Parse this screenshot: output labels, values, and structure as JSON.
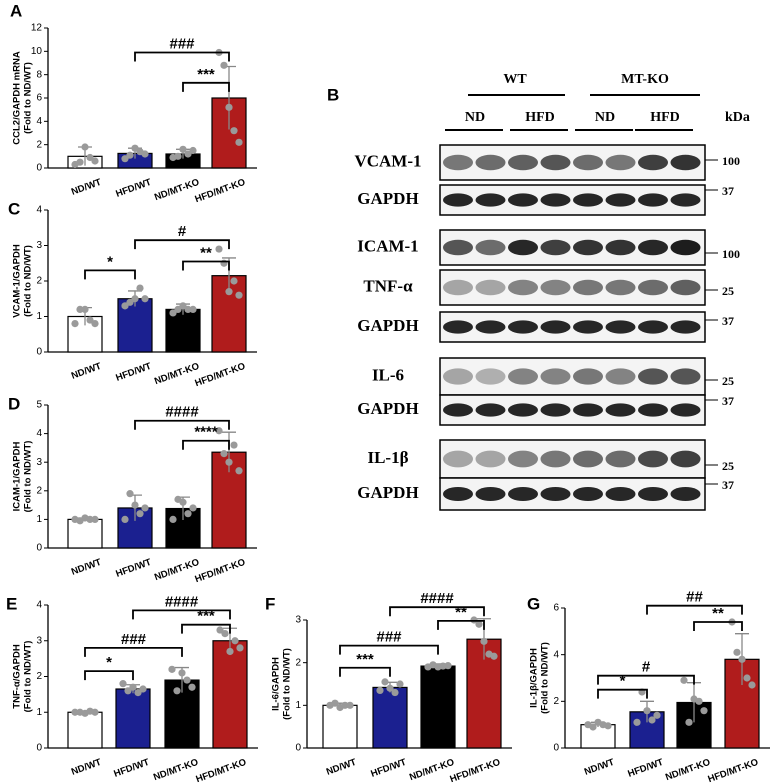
{
  "chart_data": [
    {
      "type": "bar",
      "panel": "A",
      "ylabel": [
        "CCL2/GAPDH mRNA",
        "(Fold to ND/WT)"
      ],
      "categories": [
        "ND/WT",
        "HFD/WT",
        "ND/MT-KO",
        "HFD/MT-KO"
      ],
      "colors": [
        "#ffffff",
        "#1b2090",
        "#000000",
        "#b01c1c"
      ],
      "values": [
        1.0,
        1.25,
        1.2,
        6.0
      ],
      "errors": [
        0.8,
        0.45,
        0.4,
        2.7
      ],
      "points": [
        [
          0.3,
          0.5,
          1.8,
          0.9,
          0.6
        ],
        [
          0.8,
          1.1,
          1.7,
          1.4,
          1.2
        ],
        [
          0.9,
          1.0,
          1.6,
          1.2,
          1.5
        ],
        [
          9.9,
          8.8,
          5.2,
          3.2,
          2.2
        ]
      ],
      "ylim": [
        0,
        12
      ],
      "yticks": [
        0,
        2,
        4,
        6,
        8,
        10,
        12
      ],
      "brackets": [
        {
          "from": 1,
          "to": 3,
          "y": 9.9,
          "label": "###"
        },
        {
          "from": 2,
          "to": 3,
          "y": 7.3,
          "label": "***"
        }
      ]
    },
    {
      "type": "bar",
      "panel": "C",
      "ylabel": [
        "VCAM-1/GAPDH",
        "(Fold to ND/WT)"
      ],
      "categories": [
        "ND/WT",
        "HFD/WT",
        "ND/MT-KO",
        "HFD/MT-KO"
      ],
      "colors": [
        "#ffffff",
        "#1b2090",
        "#000000",
        "#b01c1c"
      ],
      "values": [
        1.0,
        1.5,
        1.2,
        2.15
      ],
      "errors": [
        0.25,
        0.22,
        0.15,
        0.5
      ],
      "points": [
        [
          0.8,
          1.2,
          1.2,
          0.9,
          0.8
        ],
        [
          1.3,
          1.4,
          1.5,
          1.8,
          1.5
        ],
        [
          1.1,
          1.2,
          1.3,
          1.2,
          1.2
        ],
        [
          2.9,
          2.5,
          1.7,
          2.0,
          1.6
        ]
      ],
      "ylim": [
        0,
        4
      ],
      "yticks": [
        0,
        1,
        2,
        3,
        4
      ],
      "brackets": [
        {
          "from": 0,
          "to": 1,
          "y": 2.3,
          "label": "*"
        },
        {
          "from": 1,
          "to": 3,
          "y": 3.15,
          "label": "#"
        },
        {
          "from": 2,
          "to": 3,
          "y": 2.55,
          "label": "**"
        }
      ]
    },
    {
      "type": "bar",
      "panel": "D",
      "ylabel": [
        "ICAM-1/GAPDH",
        "(Fold to ND/WT)"
      ],
      "categories": [
        "ND/WT",
        "HFD/WT",
        "ND/MT-KO",
        "HFD/MT-KO"
      ],
      "colors": [
        "#ffffff",
        "#1b2090",
        "#000000",
        "#b01c1c"
      ],
      "values": [
        1.0,
        1.4,
        1.38,
        3.35
      ],
      "errors": [
        0.05,
        0.45,
        0.4,
        0.7
      ],
      "points": [
        [
          1.0,
          0.95,
          1.05,
          1.0,
          1.0
        ],
        [
          1.0,
          1.9,
          1.5,
          1.2,
          1.4
        ],
        [
          1.0,
          1.7,
          1.6,
          1.2,
          1.4
        ],
        [
          4.1,
          3.3,
          3.0,
          3.6,
          2.7
        ]
      ],
      "ylim": [
        0,
        5
      ],
      "yticks": [
        0,
        1,
        2,
        3,
        4,
        5
      ],
      "brackets": [
        {
          "from": 1,
          "to": 3,
          "y": 4.45,
          "label": "####"
        },
        {
          "from": 2,
          "to": 3,
          "y": 3.75,
          "label": "****"
        }
      ]
    },
    {
      "type": "bar",
      "panel": "E",
      "ylabel": [
        "TNF-α/GAPDH",
        "(Fold to ND/WT)"
      ],
      "categories": [
        "ND/WT",
        "HFD/WT",
        "ND/MT-KO",
        "HFD/MT-KO"
      ],
      "colors": [
        "#ffffff",
        "#1b2090",
        "#000000",
        "#b01c1c"
      ],
      "values": [
        1.0,
        1.65,
        1.9,
        3.0
      ],
      "errors": [
        0.03,
        0.12,
        0.35,
        0.35
      ],
      "points": [
        [
          1.0,
          1.0,
          0.97,
          1.03,
          1.0
        ],
        [
          1.8,
          1.6,
          1.7,
          1.55,
          1.65
        ],
        [
          2.2,
          1.6,
          2.1,
          1.9,
          1.7
        ],
        [
          3.3,
          3.2,
          2.7,
          3.0,
          2.8
        ]
      ],
      "ylim": [
        0,
        4
      ],
      "yticks": [
        0,
        1,
        2,
        3,
        4
      ],
      "brackets": [
        {
          "from": 0,
          "to": 1,
          "y": 2.15,
          "label": "*"
        },
        {
          "from": 0,
          "to": 2,
          "y": 2.8,
          "label": "###"
        },
        {
          "from": 2,
          "to": 3,
          "y": 3.45,
          "label": "***"
        },
        {
          "from": 1,
          "to": 3,
          "y": 3.85,
          "label": "####"
        }
      ]
    },
    {
      "type": "bar",
      "panel": "F",
      "ylabel": [
        "IL-6/GAPDH",
        "(Fold to ND/WT)"
      ],
      "categories": [
        "ND/WT",
        "HFD/WT",
        "ND/MT-KO",
        "HFD/MT-KO"
      ],
      "colors": [
        "#ffffff",
        "#1b2090",
        "#000000",
        "#b01c1c"
      ],
      "values": [
        1.0,
        1.42,
        1.92,
        2.55
      ],
      "errors": [
        0.05,
        0.12,
        0.05,
        0.48
      ],
      "points": [
        [
          1.0,
          1.05,
          0.95,
          1.0,
          1.0
        ],
        [
          1.35,
          1.55,
          1.4,
          1.3,
          1.5
        ],
        [
          1.9,
          1.95,
          1.9,
          1.92,
          1.93
        ],
        [
          3.0,
          2.9,
          2.5,
          2.2,
          2.15
        ]
      ],
      "ylim": [
        0,
        3
      ],
      "yticks": [
        0,
        1,
        2,
        3
      ],
      "brackets": [
        {
          "from": 0,
          "to": 1,
          "y": 1.88,
          "label": "***"
        },
        {
          "from": 0,
          "to": 2,
          "y": 2.4,
          "label": "###"
        },
        {
          "from": 2,
          "to": 3,
          "y": 2.98,
          "label": "**"
        },
        {
          "from": 1,
          "to": 3,
          "y": 3.3,
          "label": "####"
        }
      ]
    },
    {
      "type": "bar",
      "panel": "G",
      "ylabel": [
        "IL-1β/GAPDH",
        "(Fold to ND/WT)"
      ],
      "categories": [
        "ND/WT",
        "HFD/WT",
        "ND/MT-KO",
        "HFD/MT-KO"
      ],
      "colors": [
        "#ffffff",
        "#1b2090",
        "#000000",
        "#b01c1c"
      ],
      "values": [
        1.0,
        1.55,
        1.95,
        3.8
      ],
      "errors": [
        0.1,
        0.45,
        0.85,
        1.1
      ],
      "points": [
        [
          1.0,
          0.9,
          1.1,
          1.0,
          0.95
        ],
        [
          1.1,
          2.4,
          1.6,
          1.2,
          1.4
        ],
        [
          2.9,
          1.1,
          2.1,
          2.0,
          1.6
        ],
        [
          5.4,
          4.1,
          3.8,
          3.0,
          2.7
        ]
      ],
      "ylim": [
        0,
        6
      ],
      "yticks": [
        0,
        2,
        4,
        6
      ],
      "brackets": [
        {
          "from": 0,
          "to": 1,
          "y": 2.5,
          "label": "*"
        },
        {
          "from": 0,
          "to": 2,
          "y": 3.1,
          "label": "#"
        },
        {
          "from": 2,
          "to": 3,
          "y": 5.4,
          "label": "**"
        },
        {
          "from": 1,
          "to": 3,
          "y": 6.1,
          "label": "##"
        }
      ]
    }
  ],
  "blot": {
    "panel": "B",
    "groups": [
      "WT",
      "MT-KO"
    ],
    "diets": [
      "ND",
      "HFD",
      "ND",
      "HFD"
    ],
    "unit": "kDa",
    "rows": [
      {
        "label": "VCAM-1",
        "marker": "100"
      },
      {
        "label": "GAPDH",
        "marker": "37"
      },
      {
        "label": "ICAM-1",
        "marker": "100"
      },
      {
        "label": "TNF-α",
        "marker": "25"
      },
      {
        "label": "GAPDH",
        "marker": "37"
      },
      {
        "label": "IL-6",
        "marker": "25"
      },
      {
        "label": "GAPDH",
        "marker": "37"
      },
      {
        "label": "IL-1β",
        "marker": "25"
      },
      {
        "label": "GAPDH",
        "marker": "37"
      }
    ]
  }
}
